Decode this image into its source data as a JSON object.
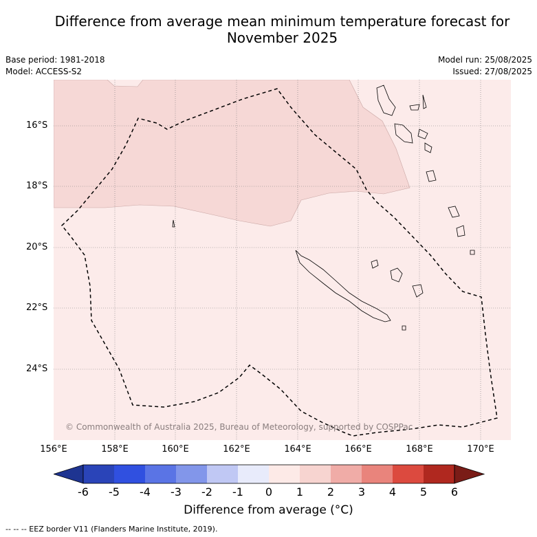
{
  "title_line1": "Difference from average mean minimum temperature forecast for",
  "title_line2": "November 2025",
  "meta": {
    "base_period": "Base period: 1981-2018",
    "model": "Model: ACCESS-S2",
    "model_run": "Model run: 25/08/2025",
    "issued": "Issued: 27/08/2025"
  },
  "map": {
    "lat_labels": [
      "16°S",
      "18°S",
      "20°S",
      "22°S",
      "24°S"
    ],
    "lon_labels": [
      "156°E",
      "158°E",
      "160°E",
      "162°E",
      "164°E",
      "166°E",
      "168°E",
      "170°E"
    ],
    "copyright": "© Commonwealth of Australia 2025, Bureau of Meteorology, supported by COSPPac",
    "fill_colors": {
      "anomaly_0_1": "#fcebea",
      "anomaly_1_2": "#f6d8d6",
      "border": "#000000"
    }
  },
  "colorbar": {
    "ticks": [
      "-6",
      "-5",
      "-4",
      "-3",
      "-2",
      "-1",
      "0",
      "1",
      "2",
      "3",
      "4",
      "5",
      "6"
    ],
    "colors": [
      "#1e3491",
      "#2a44b8",
      "#3050e0",
      "#5a74e5",
      "#8296ea",
      "#c0c8f4",
      "#e8ebfb",
      "#fdeae7",
      "#f7d4d0",
      "#f0aca7",
      "#e9847c",
      "#dc4a3f",
      "#b0281f",
      "#7a1c17"
    ],
    "label": "Difference from average (°C)"
  },
  "footnote": "--  --  -- EEZ border V11 (Flanders Marine Institute, 2019)."
}
